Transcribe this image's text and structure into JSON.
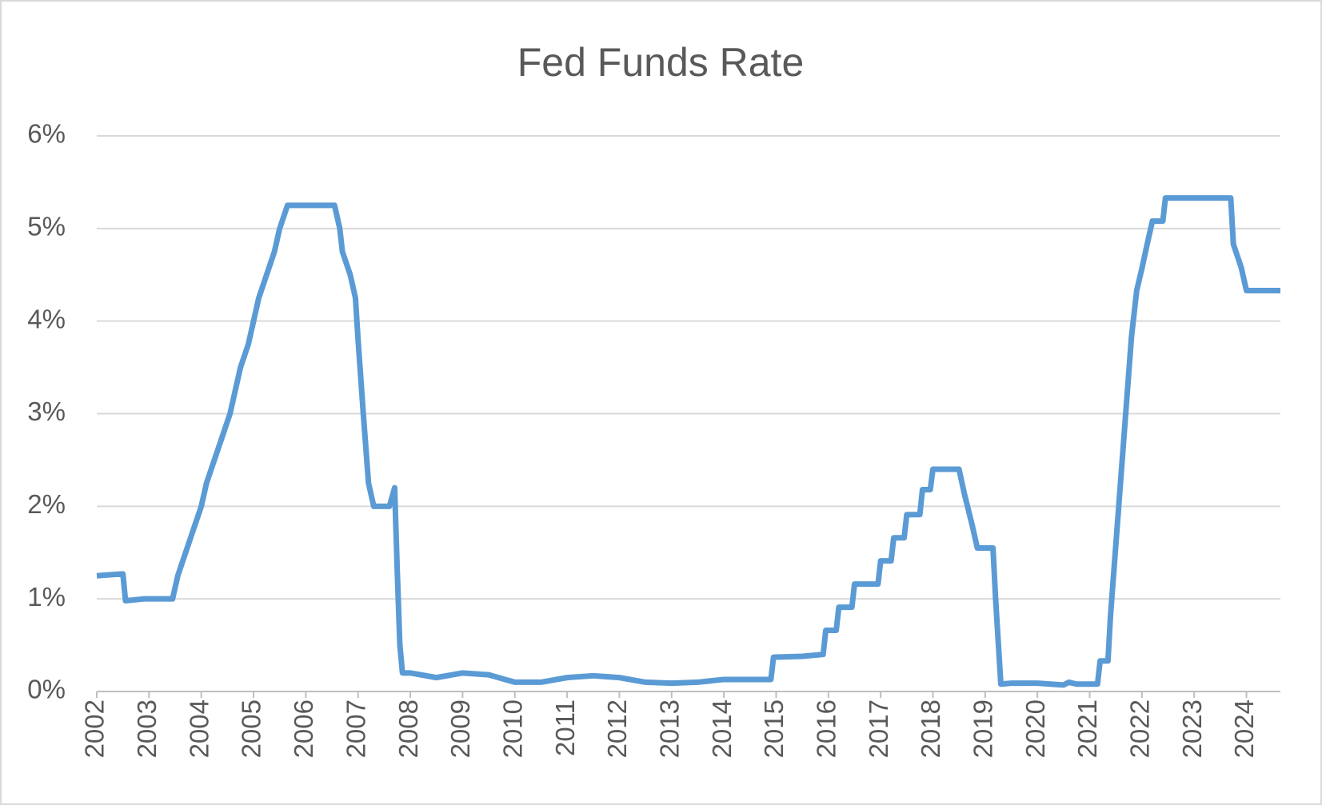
{
  "chart_data": {
    "type": "line",
    "title": "Fed Funds Rate",
    "x": [
      2002.0,
      2002.5,
      2002.55,
      2002.9,
      2003.45,
      2003.55,
      2003.7,
      2003.85,
      2004.0,
      2004.1,
      2004.25,
      2004.4,
      2004.55,
      2004.65,
      2004.75,
      2004.9,
      2005.0,
      2005.1,
      2005.25,
      2005.4,
      2005.5,
      2005.65,
      2006.0,
      2006.55,
      2006.65,
      2006.7,
      2006.85,
      2006.95,
      2007.0,
      2007.1,
      2007.2,
      2007.3,
      2007.6,
      2007.7,
      2007.75,
      2007.8,
      2007.85,
      2008.0,
      2008.5,
      2009.0,
      2009.5,
      2010.0,
      2010.5,
      2011.0,
      2011.5,
      2012.0,
      2012.5,
      2013.0,
      2013.5,
      2014.0,
      2014.5,
      2014.9,
      2014.95,
      2015.5,
      2015.9,
      2015.95,
      2016.15,
      2016.2,
      2016.45,
      2016.5,
      2016.95,
      2017.0,
      2017.2,
      2017.25,
      2017.45,
      2017.5,
      2017.75,
      2017.8,
      2017.95,
      2018.0,
      2018.5,
      2018.6,
      2018.75,
      2018.85,
      2019.15,
      2019.2,
      2019.3,
      2019.5,
      2020.0,
      2020.5,
      2020.6,
      2020.75,
      2021.15,
      2021.2,
      2021.35,
      2021.4,
      2021.5,
      2021.6,
      2021.7,
      2021.8,
      2021.9,
      2022.0,
      2022.1,
      2022.2,
      2022.4,
      2022.45,
      2023.7,
      2023.75,
      2023.9,
      2024.0,
      2024.65
    ],
    "series": [
      {
        "name": "Fed Funds Rate",
        "color": "#5b9bd5",
        "values": [
          1.25,
          1.27,
          0.98,
          1.0,
          1.0,
          1.25,
          1.5,
          1.75,
          2.0,
          2.25,
          2.5,
          2.75,
          3.0,
          3.25,
          3.5,
          3.75,
          4.0,
          4.25,
          4.5,
          4.75,
          5.0,
          5.25,
          5.25,
          5.25,
          5.0,
          4.75,
          4.5,
          4.25,
          3.8,
          3.0,
          2.25,
          2.0,
          2.0,
          2.2,
          1.3,
          0.5,
          0.2,
          0.2,
          0.15,
          0.2,
          0.18,
          0.1,
          0.1,
          0.15,
          0.17,
          0.15,
          0.1,
          0.09,
          0.1,
          0.13,
          0.13,
          0.13,
          0.37,
          0.38,
          0.4,
          0.66,
          0.66,
          0.91,
          0.91,
          1.16,
          1.16,
          1.41,
          1.41,
          1.66,
          1.66,
          1.91,
          1.91,
          2.18,
          2.18,
          2.4,
          2.4,
          2.14,
          1.8,
          1.55,
          1.55,
          1.0,
          0.08,
          0.09,
          0.09,
          0.07,
          0.1,
          0.08,
          0.08,
          0.33,
          0.33,
          0.83,
          1.58,
          2.33,
          3.08,
          3.83,
          4.33,
          4.57,
          4.83,
          5.08,
          5.08,
          5.33,
          5.33,
          4.83,
          4.58,
          4.33,
          4.33
        ]
      }
    ],
    "xlim": [
      2002,
      2024.65
    ],
    "xticks": [
      2002,
      2003,
      2004,
      2005,
      2006,
      2007,
      2008,
      2009,
      2010,
      2011,
      2012,
      2013,
      2014,
      2015,
      2016,
      2017,
      2018,
      2019,
      2020,
      2021,
      2022,
      2023,
      2024
    ],
    "ylim": [
      0,
      6
    ],
    "yticks": [
      {
        "value": 0,
        "label": "0%"
      },
      {
        "value": 1,
        "label": "1%"
      },
      {
        "value": 2,
        "label": "2%"
      },
      {
        "value": 3,
        "label": "3%"
      },
      {
        "value": 4,
        "label": "4%"
      },
      {
        "value": 5,
        "label": "5%"
      },
      {
        "value": 6,
        "label": "6%"
      }
    ],
    "grid": true
  }
}
